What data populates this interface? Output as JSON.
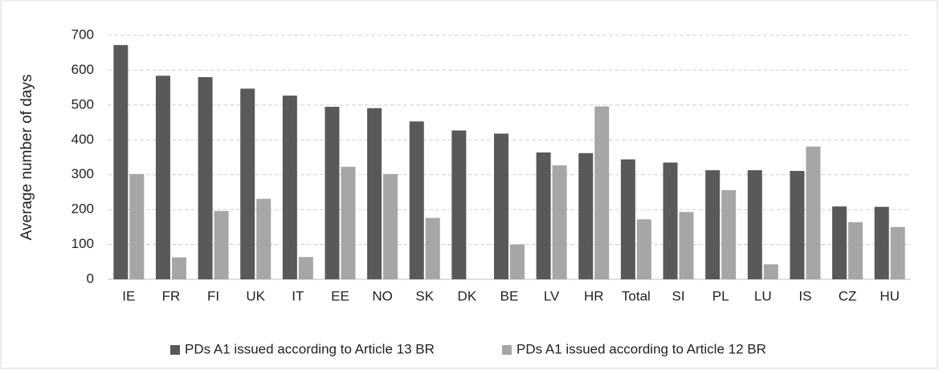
{
  "chart_data": {
    "type": "bar",
    "y_label": "Average number of days",
    "categories": [
      "IE",
      "FR",
      "FI",
      "UK",
      "IT",
      "EE",
      "NO",
      "SK",
      "DK",
      "BE",
      "LV",
      "HR",
      "Total",
      "SI",
      "PL",
      "LU",
      "IS",
      "CZ",
      "HU"
    ],
    "series": [
      {
        "name": "PDs A1 issued according to Article 13 BR",
        "color": "#595959",
        "values": [
          672,
          584,
          580,
          547,
          527,
          495,
          491,
          453,
          427,
          418,
          364,
          362,
          344,
          335,
          313,
          313,
          311,
          209,
          208
        ]
      },
      {
        "name": "PDs A1 issued according to Article 12 BR",
        "color": "#a6a6a6",
        "values": [
          302,
          63,
          196,
          231,
          64,
          323,
          302,
          176,
          null,
          100,
          327,
          496,
          172,
          193,
          256,
          43,
          381,
          164,
          150
        ]
      }
    ],
    "ylim": [
      0,
      700
    ],
    "yticks": [
      0,
      100,
      200,
      300,
      400,
      500,
      600,
      700
    ],
    "grid": true,
    "legend": "bottom"
  }
}
